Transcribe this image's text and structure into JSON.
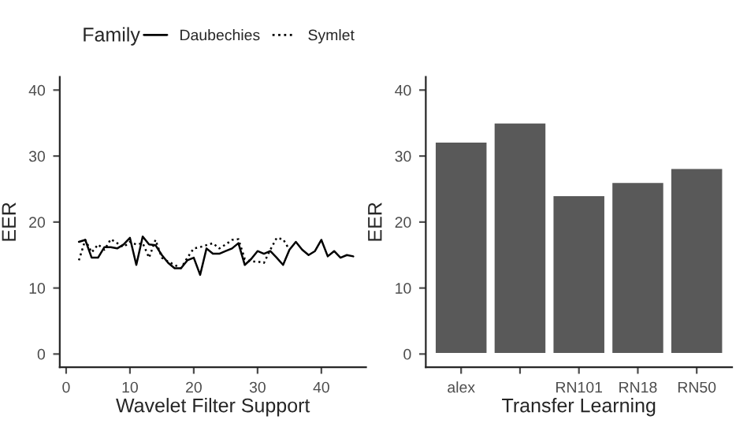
{
  "chart_data": [
    {
      "type": "line",
      "xlabel": "Wavelet Filter Support",
      "ylabel": "EER",
      "legend_title": "Family",
      "legend": "top",
      "xlim": [
        -1,
        47
      ],
      "xticks": [
        0,
        10,
        20,
        30,
        40
      ],
      "ylim": [
        -2,
        42
      ],
      "yticks": [
        0,
        10,
        20,
        30,
        40
      ],
      "grid": false,
      "series": [
        {
          "name": "Daubechies",
          "color": "#000000",
          "line_style": "solid",
          "x": [
            2,
            3,
            4,
            5,
            6,
            7,
            8,
            9,
            10,
            11,
            12,
            13,
            14,
            15,
            16,
            17,
            18,
            19,
            20,
            21,
            22,
            23,
            24,
            25,
            26,
            27,
            28,
            29,
            30,
            31,
            32,
            33,
            34,
            35,
            36,
            37,
            38,
            39,
            40,
            41,
            42,
            43,
            44,
            45
          ],
          "values": [
            17.0,
            17.3,
            14.6,
            14.6,
            16.2,
            16.2,
            16.0,
            16.6,
            17.6,
            13.5,
            17.8,
            16.6,
            16.5,
            15.0,
            13.8,
            13.0,
            13.0,
            14.2,
            14.6,
            12.0,
            16.0,
            15.2,
            15.2,
            15.6,
            16.0,
            16.8,
            13.5,
            14.4,
            15.6,
            15.2,
            15.6,
            14.6,
            13.5,
            15.8,
            17.0,
            15.8,
            15.0,
            15.6,
            17.3,
            14.8,
            15.6,
            14.6,
            15.0,
            14.8
          ]
        },
        {
          "name": "Symlet",
          "color": "#000000",
          "line_style": "dotted",
          "x": [
            2,
            3,
            4,
            5,
            6,
            7,
            8,
            9,
            10,
            11,
            12,
            13,
            14,
            15,
            16,
            17,
            18,
            19,
            20,
            21,
            22,
            23,
            24,
            25,
            26,
            27,
            28,
            29,
            30,
            31,
            32,
            33,
            34,
            35
          ],
          "values": [
            14.2,
            17.3,
            15.4,
            16.6,
            15.8,
            17.4,
            16.8,
            16.2,
            17.0,
            16.6,
            16.8,
            14.6,
            17.3,
            14.6,
            14.0,
            13.5,
            13.0,
            14.6,
            16.0,
            16.2,
            16.5,
            16.8,
            16.0,
            16.6,
            17.3,
            17.4,
            14.4,
            14.0,
            14.0,
            13.8,
            15.8,
            17.6,
            17.4,
            15.8
          ]
        }
      ]
    },
    {
      "type": "bar",
      "xlabel": "Transfer Learning",
      "ylabel": "EER",
      "categories": [
        "alex",
        null,
        "RN101",
        "RN18",
        "RN50"
      ],
      "values": [
        32.2,
        35.1,
        24.1,
        26.1,
        28.2
      ],
      "color": "#595959",
      "ylim": [
        -2,
        42
      ],
      "yticks": [
        0,
        10,
        20,
        30,
        40
      ],
      "grid": false
    }
  ]
}
